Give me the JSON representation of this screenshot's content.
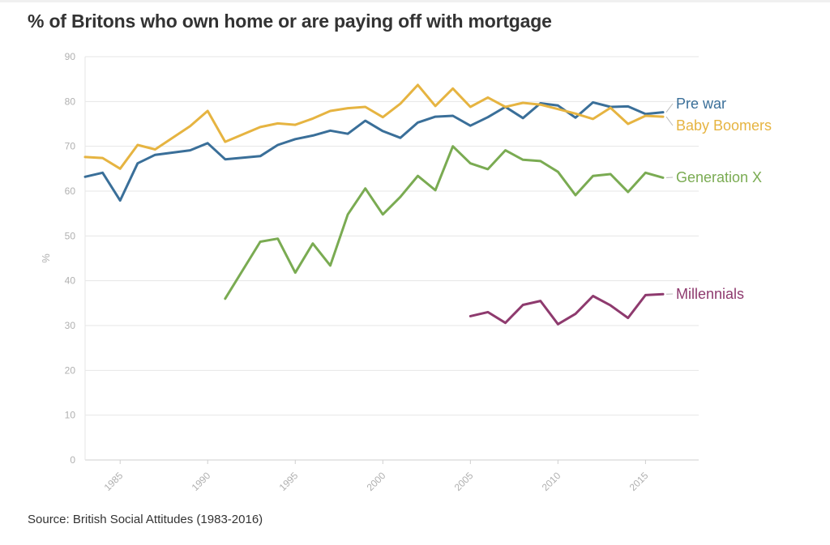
{
  "title": "% of Britons who own home or are paying off with mortgage",
  "source": "Source: British Social Attitudes (1983-2016)",
  "chart_data": {
    "type": "line",
    "title": "% of Britons who own home or are paying off with mortgage",
    "xlabel": "",
    "ylabel": "%",
    "xlim": [
      1983,
      2016
    ],
    "ylim": [
      0,
      90
    ],
    "yticks": [
      0,
      10,
      20,
      30,
      40,
      50,
      60,
      70,
      80,
      90
    ],
    "xticks": [
      1985,
      1990,
      1995,
      2000,
      2005,
      2010,
      2015
    ],
    "grid": true,
    "legend": "labels at end of lines (right)",
    "series": [
      {
        "name": "Pre war",
        "color": "#3a6f99",
        "x": [
          1983,
          1984,
          1985,
          1986,
          1987,
          1989,
          1990,
          1991,
          1993,
          1994,
          1995,
          1996,
          1997,
          1998,
          1999,
          2000,
          2001,
          2002,
          2003,
          2004,
          2005,
          2006,
          2007,
          2008,
          2009,
          2010,
          2011,
          2012,
          2013,
          2014,
          2015,
          2016
        ],
        "values": [
          63.2,
          64.1,
          57.9,
          66.2,
          68.1,
          69.1,
          70.7,
          67.1,
          67.8,
          70.3,
          71.6,
          72.4,
          73.5,
          72.8,
          75.7,
          73.4,
          71.9,
          75.3,
          76.6,
          76.8,
          74.6,
          76.5,
          78.8,
          76.3,
          79.6,
          79.1,
          76.4,
          79.8,
          78.8,
          78.9,
          77.2,
          77.6
        ]
      },
      {
        "name": "Baby Boomers",
        "color": "#e6b441",
        "x": [
          1983,
          1984,
          1985,
          1986,
          1987,
          1989,
          1990,
          1991,
          1993,
          1994,
          1995,
          1996,
          1997,
          1998,
          1999,
          2000,
          2001,
          2002,
          2003,
          2004,
          2005,
          2006,
          2007,
          2008,
          2009,
          2010,
          2011,
          2012,
          2013,
          2014,
          2015,
          2016
        ],
        "values": [
          67.6,
          67.4,
          65.0,
          70.3,
          69.3,
          74.5,
          77.9,
          71.0,
          74.3,
          75.1,
          74.8,
          76.2,
          77.9,
          78.5,
          78.8,
          76.5,
          79.5,
          83.7,
          79.0,
          82.9,
          78.8,
          80.9,
          78.8,
          79.7,
          79.3,
          78.3,
          77.3,
          76.1,
          78.6,
          75.0,
          76.8,
          76.6
        ]
      },
      {
        "name": "Generation X",
        "color": "#7aab52",
        "x": [
          1991,
          1993,
          1994,
          1995,
          1996,
          1997,
          1998,
          1999,
          2000,
          2001,
          2002,
          2003,
          2004,
          2005,
          2006,
          2007,
          2008,
          2009,
          2010,
          2011,
          2012,
          2013,
          2014,
          2015,
          2016
        ],
        "values": [
          36.0,
          48.7,
          49.4,
          41.8,
          48.3,
          43.4,
          54.8,
          60.6,
          54.8,
          58.7,
          63.4,
          60.2,
          70.0,
          66.2,
          64.9,
          69.1,
          67.0,
          66.7,
          64.3,
          59.1,
          63.4,
          63.8,
          59.8,
          64.1,
          63.0
        ]
      },
      {
        "name": "Millennials",
        "color": "#8e3a6e",
        "x": [
          2005,
          2006,
          2007,
          2008,
          2009,
          2010,
          2011,
          2012,
          2013,
          2014,
          2015,
          2016
        ],
        "values": [
          32.1,
          33.0,
          30.6,
          34.6,
          35.5,
          30.3,
          32.6,
          36.6,
          34.5,
          31.7,
          36.8,
          37.0
        ]
      }
    ]
  }
}
